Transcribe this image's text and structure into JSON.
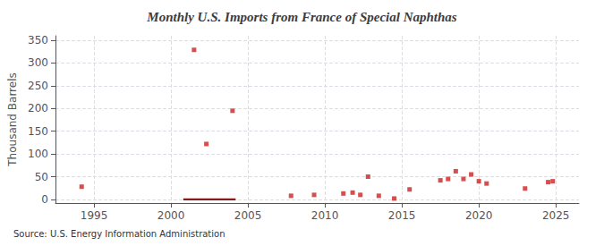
{
  "chart_data": {
    "type": "scatter",
    "title": "Monthly U.S. Imports from France of Special Naphthas",
    "ylabel": "Thousand Barrels",
    "source": "Source: U.S. Energy Information Administration",
    "xlim": [
      1992.5,
      2026.5
    ],
    "ylim": [
      -8,
      360
    ],
    "xticks": [
      1995,
      2000,
      2005,
      2010,
      2015,
      2020,
      2025
    ],
    "yticks": [
      0,
      50,
      100,
      150,
      200,
      250,
      300,
      350
    ],
    "grid": true,
    "series": [
      {
        "type": "scatter",
        "color": "#cc2222",
        "marker": "square",
        "x": [
          1994.2,
          2001.5,
          2002.3,
          2004.0,
          2007.8,
          2009.3,
          2011.2,
          2011.8,
          2012.3,
          2012.8,
          2013.5,
          2014.5,
          2015.5,
          2017.5,
          2018.0,
          2018.5,
          2019.0,
          2019.5,
          2020.0,
          2020.5,
          2023.0,
          2024.5,
          2024.8
        ],
        "values": [
          28,
          329,
          122,
          195,
          8,
          10,
          13,
          15,
          10,
          50,
          8,
          2,
          22,
          42,
          45,
          62,
          45,
          55,
          40,
          35,
          24,
          38,
          40
        ]
      },
      {
        "type": "bar",
        "orientation": "horizontal",
        "color": "#8b1a1a",
        "x_start": 2000.8,
        "x_end": 2004.2,
        "y": 0,
        "height": 4.5
      }
    ]
  }
}
